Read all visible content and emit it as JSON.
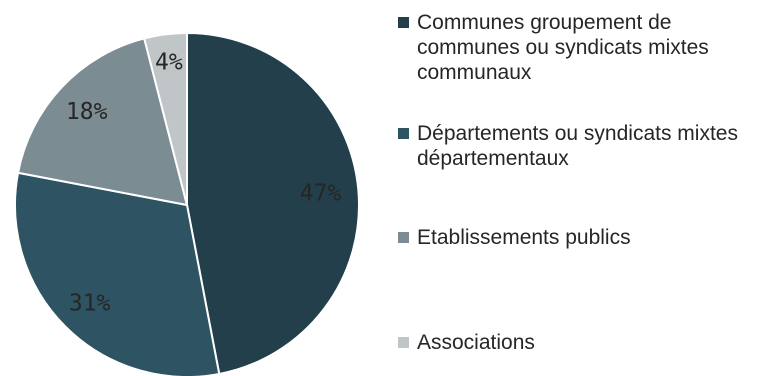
{
  "chart_data": {
    "type": "pie",
    "slices": [
      {
        "label": "Communes groupement de communes ou syndicats mixtes communaux",
        "value": 47,
        "display": "47%",
        "color": "#223f4b"
      },
      {
        "label": "Départements ou syndicats mixtes départementaux",
        "value": 31,
        "display": "31%",
        "color": "#2e5463"
      },
      {
        "label": "Etablissements publics",
        "value": 18,
        "display": "18%",
        "color": "#7c8c93"
      },
      {
        "label": "Associations",
        "value": 4,
        "display": "4%",
        "color": "#c0c5c8"
      }
    ],
    "legend_position": "right"
  }
}
